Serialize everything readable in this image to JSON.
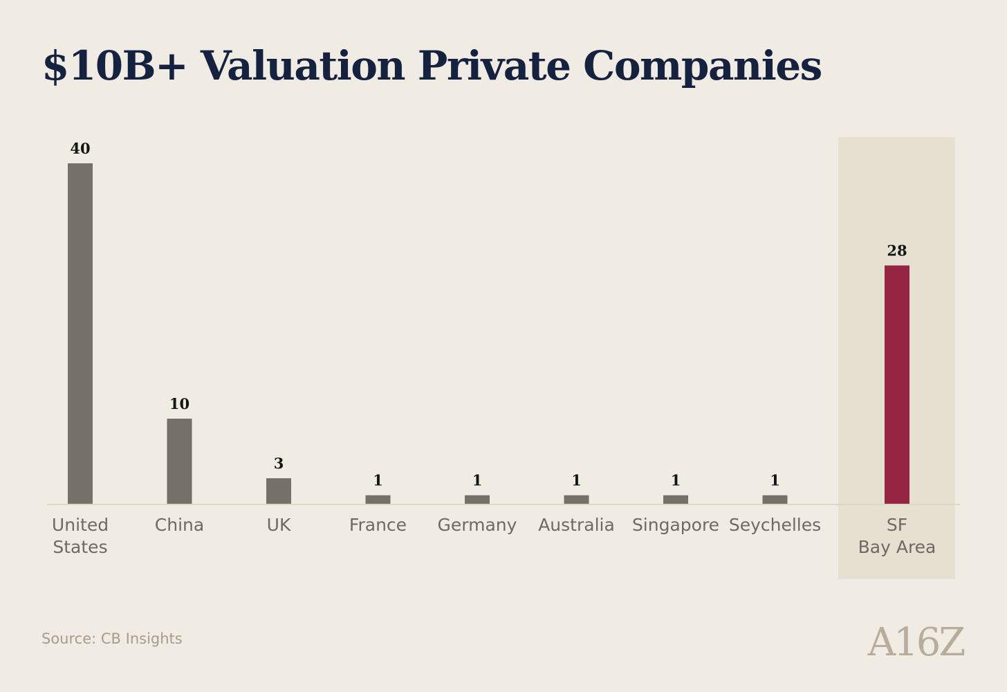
{
  "chart_data": {
    "type": "bar",
    "title": "$10B+ Valuation Private Companies",
    "categories": [
      "United\nStates",
      "China",
      "UK",
      "France",
      "Germany",
      "Australia",
      "Singapore",
      "Seychelles",
      "SF\nBay Area"
    ],
    "values": [
      40,
      10,
      3,
      1,
      1,
      1,
      1,
      1,
      28
    ],
    "highlight_category": "SF\nBay Area",
    "xlabel": "",
    "ylabel": "",
    "ylim": [
      0,
      40
    ],
    "grid": false,
    "legend": "none"
  },
  "source": "Source: CB Insights",
  "logo_text": "A16Z",
  "colors": {
    "background": "#f0ebe3",
    "title": "#15223f",
    "bar": "#757169",
    "highlight_bar": "#962541",
    "highlight_band": "#e6e0d1",
    "axis": "#ddd6c3",
    "value_label": "#141414",
    "category_label": "#6e6a62",
    "source": "#a59c8a",
    "logo": "#b7ad9a"
  }
}
